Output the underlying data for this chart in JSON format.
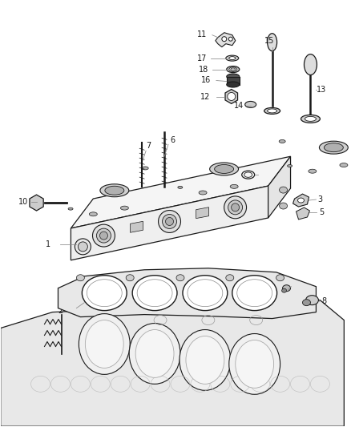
{
  "bg": "#ffffff",
  "lc": "#1a1a1a",
  "gray": "#777777",
  "fig_w": 4.38,
  "fig_h": 5.33,
  "dpi": 100,
  "label_fs": 7.0,
  "leader_color": "#888888"
}
